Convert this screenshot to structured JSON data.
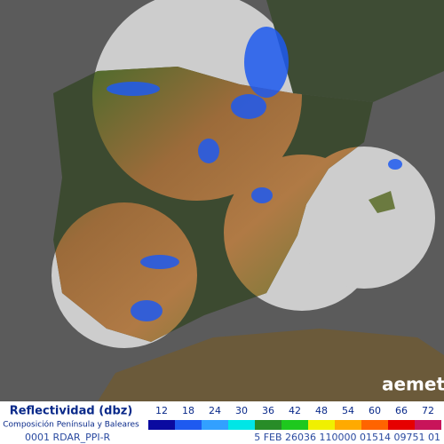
{
  "legend": {
    "title": "Reflectividad (dbz)",
    "subtitle": "Composición Península y Baleares",
    "items": [
      {
        "value": 12,
        "color": "#0a0aa0"
      },
      {
        "value": 18,
        "color": "#1e5af0"
      },
      {
        "value": 24,
        "color": "#32a0ff"
      },
      {
        "value": 30,
        "color": "#00e6e6"
      },
      {
        "value": 36,
        "color": "#288c28"
      },
      {
        "value": 42,
        "color": "#1ec81e"
      },
      {
        "value": 48,
        "color": "#f0f000"
      },
      {
        "value": 54,
        "color": "#ffaa00"
      },
      {
        "value": 60,
        "color": "#ff6400"
      },
      {
        "value": 66,
        "color": "#e60000"
      },
      {
        "value": 72,
        "color": "#c8145a"
      }
    ]
  },
  "logo": "aemet",
  "status": {
    "left": "0001 RDAR_PPI-R",
    "right": "5 FEB 26036 110000 01514 09751 01"
  }
}
